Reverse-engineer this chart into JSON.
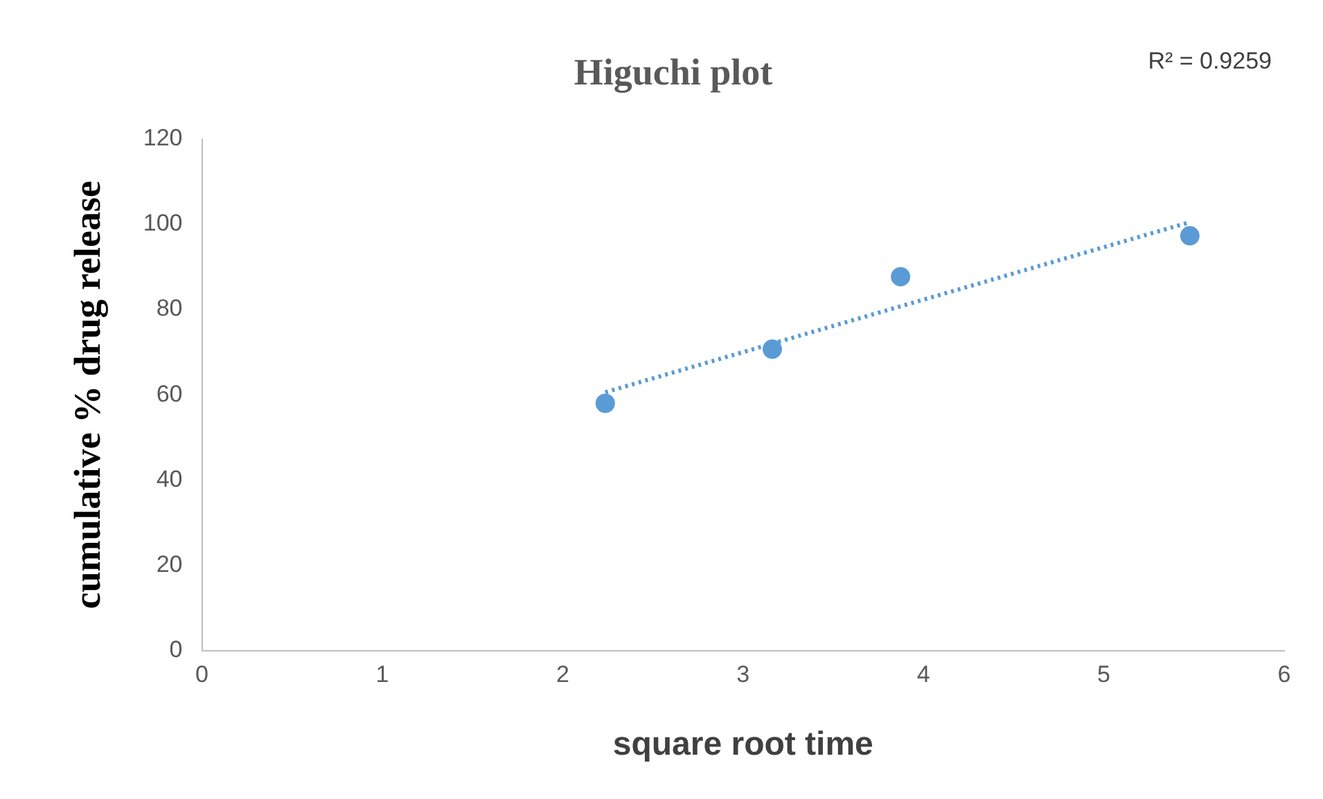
{
  "chart_data": {
    "type": "scatter",
    "title": "Higuchi plot",
    "xlabel": "square root time",
    "ylabel": "cumulative % drug release",
    "xlim": [
      0,
      6
    ],
    "xticks": [
      0,
      1,
      2,
      3,
      4,
      5,
      6
    ],
    "ylim": [
      0,
      120
    ],
    "yticks": [
      0,
      20,
      40,
      60,
      80,
      100,
      120
    ],
    "series": [
      {
        "type": "scatter",
        "color": "#5b9bd5",
        "x": [
          2.236,
          3.162,
          3.873,
          5.477
        ],
        "values": [
          58,
          70.7,
          87.7,
          97.3
        ],
        "marker": "circle"
      },
      {
        "type": "line",
        "color": "#5b9bd5",
        "x": [
          2.236,
          5.477
        ],
        "values": [
          60.6,
          100.5
        ],
        "line_style": "dotted",
        "marker": "none"
      }
    ],
    "annotations": [
      "R² = 0.9259"
    ]
  }
}
